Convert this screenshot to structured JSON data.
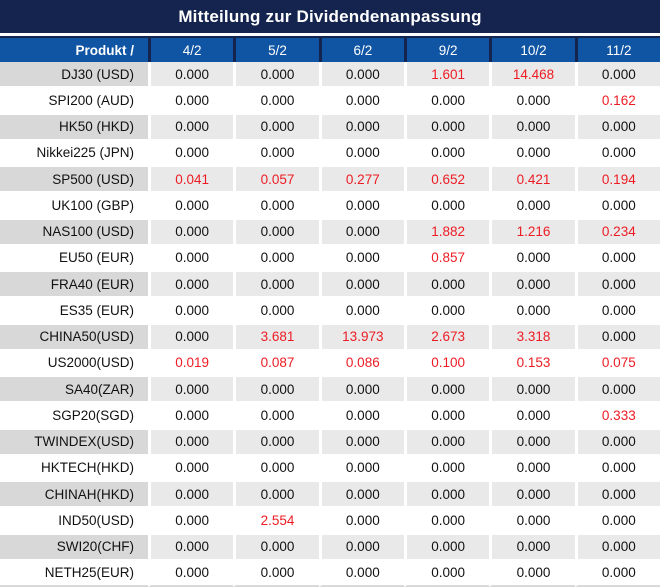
{
  "title": "Mitteilung zur Dividendenanpassung",
  "columns": {
    "product": "Produkt /",
    "dates": [
      "4/2",
      "5/2",
      "6/2",
      "9/2",
      "10/2",
      "11/2"
    ]
  },
  "rows": [
    {
      "product": "DJ30 (USD)",
      "values": [
        "0.000",
        "0.000",
        "0.000",
        "1.601",
        "14.468",
        "0.000"
      ],
      "red": [
        3,
        4
      ]
    },
    {
      "product": "SPI200 (AUD)",
      "values": [
        "0.000",
        "0.000",
        "0.000",
        "0.000",
        "0.000",
        "0.162"
      ],
      "red": [
        5
      ]
    },
    {
      "product": "HK50 (HKD)",
      "values": [
        "0.000",
        "0.000",
        "0.000",
        "0.000",
        "0.000",
        "0.000"
      ],
      "red": []
    },
    {
      "product": "Nikkei225 (JPN)",
      "values": [
        "0.000",
        "0.000",
        "0.000",
        "0.000",
        "0.000",
        "0.000"
      ],
      "red": []
    },
    {
      "product": "SP500 (USD)",
      "values": [
        "0.041",
        "0.057",
        "0.277",
        "0.652",
        "0.421",
        "0.194"
      ],
      "red": [
        0,
        1,
        2,
        3,
        4,
        5
      ]
    },
    {
      "product": "UK100 (GBP)",
      "values": [
        "0.000",
        "0.000",
        "0.000",
        "0.000",
        "0.000",
        "0.000"
      ],
      "red": []
    },
    {
      "product": "NAS100 (USD)",
      "values": [
        "0.000",
        "0.000",
        "0.000",
        "1.882",
        "1.216",
        "0.234"
      ],
      "red": [
        3,
        4,
        5
      ]
    },
    {
      "product": "EU50 (EUR)",
      "values": [
        "0.000",
        "0.000",
        "0.000",
        "0.857",
        "0.000",
        "0.000"
      ],
      "red": [
        3
      ]
    },
    {
      "product": "FRA40 (EUR)",
      "values": [
        "0.000",
        "0.000",
        "0.000",
        "0.000",
        "0.000",
        "0.000"
      ],
      "red": []
    },
    {
      "product": "ES35 (EUR)",
      "values": [
        "0.000",
        "0.000",
        "0.000",
        "0.000",
        "0.000",
        "0.000"
      ],
      "red": []
    },
    {
      "product": "CHINA50(USD)",
      "values": [
        "0.000",
        "3.681",
        "13.973",
        "2.673",
        "3.318",
        "0.000"
      ],
      "red": [
        1,
        2,
        3,
        4
      ]
    },
    {
      "product": "US2000(USD)",
      "values": [
        "0.019",
        "0.087",
        "0.086",
        "0.100",
        "0.153",
        "0.075"
      ],
      "red": [
        0,
        1,
        2,
        3,
        4,
        5
      ]
    },
    {
      "product": "SA40(ZAR)",
      "values": [
        "0.000",
        "0.000",
        "0.000",
        "0.000",
        "0.000",
        "0.000"
      ],
      "red": []
    },
    {
      "product": "SGP20(SGD)",
      "values": [
        "0.000",
        "0.000",
        "0.000",
        "0.000",
        "0.000",
        "0.333"
      ],
      "red": [
        5
      ]
    },
    {
      "product": "TWINDEX(USD)",
      "values": [
        "0.000",
        "0.000",
        "0.000",
        "0.000",
        "0.000",
        "0.000"
      ],
      "red": []
    },
    {
      "product": "HKTECH(HKD)",
      "values": [
        "0.000",
        "0.000",
        "0.000",
        "0.000",
        "0.000",
        "0.000"
      ],
      "red": []
    },
    {
      "product": "CHINAH(HKD)",
      "values": [
        "0.000",
        "0.000",
        "0.000",
        "0.000",
        "0.000",
        "0.000"
      ],
      "red": []
    },
    {
      "product": "IND50(USD)",
      "values": [
        "0.000",
        "2.554",
        "0.000",
        "0.000",
        "0.000",
        "0.000"
      ],
      "red": [
        1
      ]
    },
    {
      "product": "SWI20(CHF)",
      "values": [
        "0.000",
        "0.000",
        "0.000",
        "0.000",
        "0.000",
        "0.000"
      ],
      "red": []
    },
    {
      "product": "NETH25(EUR)",
      "values": [
        "0.000",
        "0.000",
        "0.000",
        "0.000",
        "0.000",
        "0.000"
      ],
      "red": []
    }
  ],
  "colors": {
    "title_bg": "#15244e",
    "header_bg": "#0f55a4",
    "row_gray": "#e9e9e9",
    "product_gray": "#d8d8d8",
    "value_red": "#ed1c24",
    "text_black": "#111111",
    "text_white": "#ffffff"
  }
}
